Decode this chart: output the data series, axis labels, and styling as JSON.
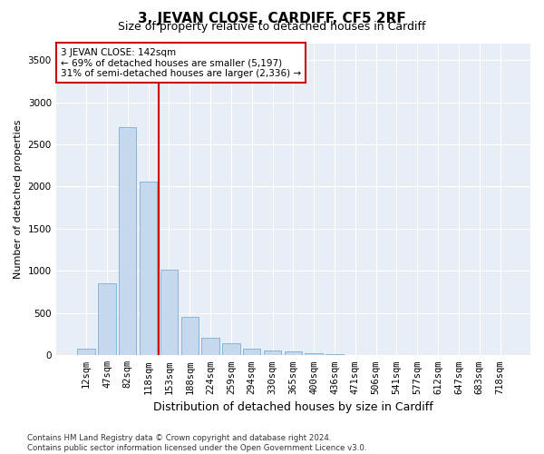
{
  "title": "3, JEVAN CLOSE, CARDIFF, CF5 2RF",
  "subtitle": "Size of property relative to detached houses in Cardiff",
  "xlabel": "Distribution of detached houses by size in Cardiff",
  "ylabel": "Number of detached properties",
  "categories": [
    "12sqm",
    "47sqm",
    "82sqm",
    "118sqm",
    "153sqm",
    "188sqm",
    "224sqm",
    "259sqm",
    "294sqm",
    "330sqm",
    "365sqm",
    "400sqm",
    "436sqm",
    "471sqm",
    "506sqm",
    "541sqm",
    "577sqm",
    "612sqm",
    "647sqm",
    "683sqm",
    "718sqm"
  ],
  "values": [
    75,
    850,
    2700,
    2060,
    1020,
    450,
    210,
    140,
    75,
    55,
    45,
    30,
    15,
    8,
    5,
    3,
    2,
    1,
    1,
    0,
    0
  ],
  "bar_color": "#c5d8ee",
  "bar_edge_color": "#7bafd4",
  "vline_x": 3.5,
  "vline_color": "#cc0000",
  "annotation_text": "3 JEVAN CLOSE: 142sqm\n← 69% of detached houses are smaller (5,197)\n31% of semi-detached houses are larger (2,336) →",
  "annotation_box_color": "#ffffff",
  "annotation_box_edge": "#cc0000",
  "ylim": [
    0,
    3700
  ],
  "yticks": [
    0,
    500,
    1000,
    1500,
    2000,
    2500,
    3000,
    3500
  ],
  "bg_color": "#ffffff",
  "plot_bg_color": "#e8eef5",
  "footer": "Contains HM Land Registry data © Crown copyright and database right 2024.\nContains public sector information licensed under the Open Government Licence v3.0.",
  "title_fontsize": 11,
  "subtitle_fontsize": 9,
  "xlabel_fontsize": 9,
  "ylabel_fontsize": 8,
  "tick_fontsize": 7.5,
  "annotation_fontsize": 7.5
}
